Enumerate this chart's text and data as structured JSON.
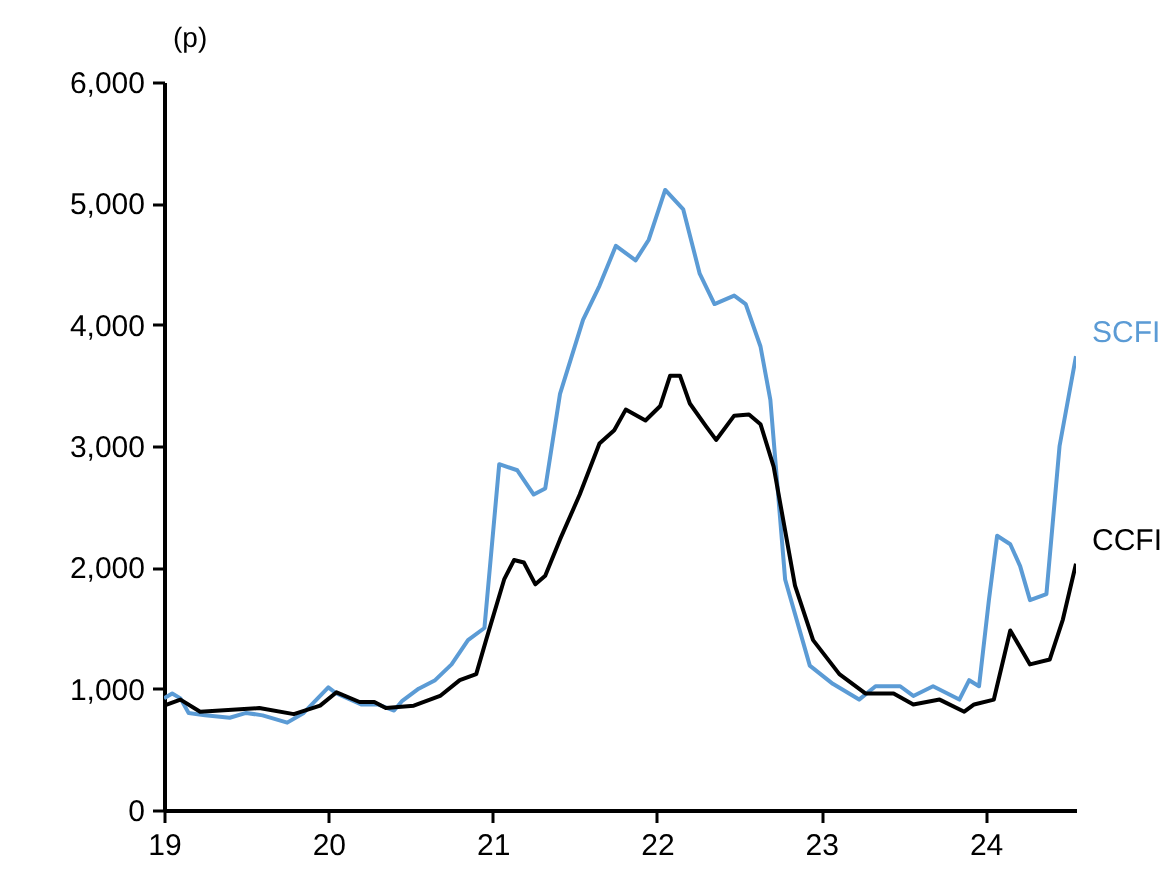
{
  "chart_data": {
    "type": "line",
    "ylabel": "(p)",
    "xlim": [
      19,
      24.55
    ],
    "xticks": [
      19,
      20,
      21,
      22,
      23,
      24
    ],
    "ylim": [
      0,
      6000
    ],
    "yticks": [
      {
        "value": 0,
        "label": "0"
      },
      {
        "value": 1000,
        "label": "1,000"
      },
      {
        "value": 2000,
        "label": "2,000"
      },
      {
        "value": 3000,
        "label": "3,000"
      },
      {
        "value": 4000,
        "label": "4,000"
      },
      {
        "value": 5000,
        "label": "5,000"
      },
      {
        "value": 6000,
        "label": "6,000"
      }
    ],
    "grid": false,
    "marker": "none",
    "line_style": "solid",
    "series": [
      {
        "name": "SCFI",
        "color": "#5b9bd5",
        "x": [
          19.0,
          19.05,
          19.1,
          19.15,
          19.25,
          19.4,
          19.5,
          19.6,
          19.75,
          19.85,
          20.0,
          20.05,
          20.2,
          20.3,
          20.4,
          20.45,
          20.55,
          20.65,
          20.75,
          20.85,
          20.95,
          21.04,
          21.15,
          21.25,
          21.32,
          21.41,
          21.55,
          21.65,
          21.75,
          21.87,
          21.95,
          22.05,
          22.16,
          22.26,
          22.35,
          22.47,
          22.54,
          22.63,
          22.69,
          22.78,
          22.93,
          23.07,
          23.23,
          23.33,
          23.48,
          23.56,
          23.68,
          23.84,
          23.9,
          23.96,
          24.02,
          24.07,
          24.15,
          24.21,
          24.27,
          24.37,
          24.45,
          24.55
        ],
        "values": [
          920,
          960,
          920,
          800,
          780,
          760,
          800,
          780,
          720,
          800,
          1010,
          960,
          870,
          870,
          820,
          900,
          1000,
          1070,
          1200,
          1400,
          1500,
          2850,
          2800,
          2600,
          2650,
          3430,
          4040,
          4320,
          4650,
          4530,
          4700,
          5110,
          4950,
          4420,
          4170,
          4240,
          4170,
          3820,
          3380,
          1900,
          1190,
          1040,
          910,
          1020,
          1020,
          940,
          1020,
          910,
          1070,
          1020,
          1730,
          2260,
          2190,
          2010,
          1730,
          1780,
          3000,
          3740
        ]
      },
      {
        "name": "CCFI",
        "color": "#000000",
        "x": [
          19.0,
          19.1,
          19.22,
          19.58,
          19.79,
          19.95,
          20.05,
          20.19,
          20.28,
          20.35,
          20.52,
          20.68,
          20.8,
          20.9,
          20.96,
          21.07,
          21.13,
          21.19,
          21.26,
          21.32,
          21.41,
          21.53,
          21.65,
          21.74,
          21.81,
          21.93,
          22.02,
          22.08,
          22.14,
          22.2,
          22.3,
          22.36,
          22.47,
          22.56,
          22.63,
          22.71,
          22.84,
          22.95,
          23.11,
          23.27,
          23.44,
          23.56,
          23.72,
          23.87,
          23.93,
          24.05,
          24.15,
          24.27,
          24.39,
          24.47,
          24.55
        ],
        "values": [
          860,
          910,
          810,
          840,
          790,
          860,
          970,
          890,
          890,
          840,
          860,
          940,
          1070,
          1120,
          1400,
          1900,
          2060,
          2040,
          1860,
          1930,
          2230,
          2600,
          3020,
          3130,
          3300,
          3210,
          3330,
          3580,
          3580,
          3350,
          3160,
          3050,
          3250,
          3260,
          3180,
          2830,
          1850,
          1400,
          1120,
          960,
          960,
          870,
          910,
          810,
          870,
          910,
          1480,
          1200,
          1240,
          1570,
          2030
        ]
      }
    ]
  }
}
